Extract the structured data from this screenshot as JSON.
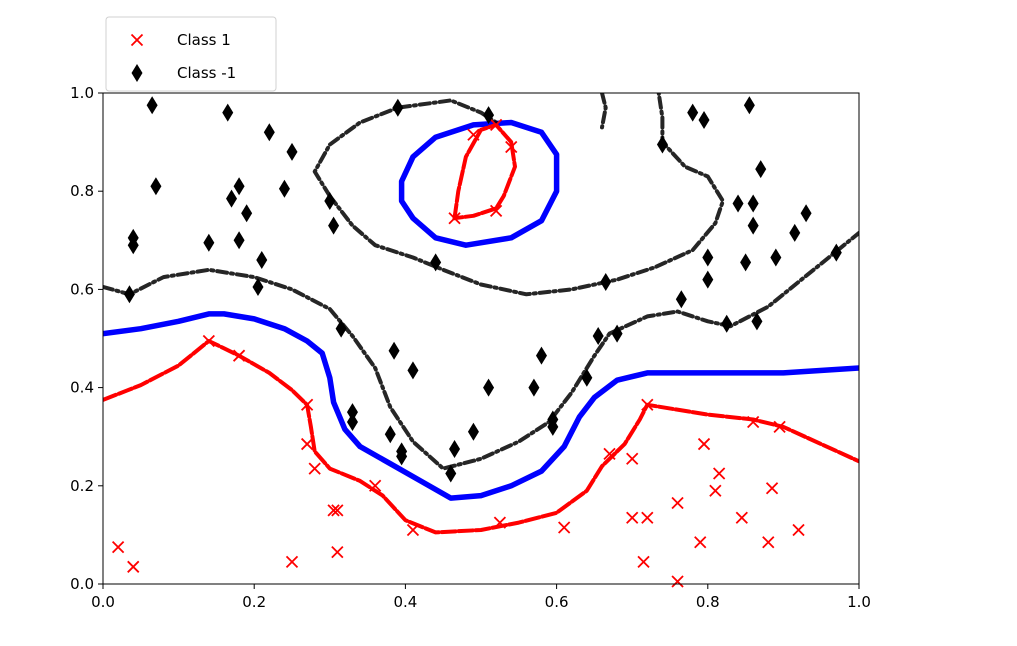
{
  "chart_data": {
    "type": "scatter",
    "title": "",
    "xlabel": "",
    "ylabel": "",
    "xlim": [
      0.0,
      1.0
    ],
    "ylim": [
      0.0,
      1.0
    ],
    "xticks": [
      "0.0",
      "0.2",
      "0.4",
      "0.6",
      "0.8",
      "1.0"
    ],
    "yticks": [
      "0.0",
      "0.2",
      "0.4",
      "0.6",
      "0.8",
      "1.0"
    ],
    "grid": false,
    "legend": {
      "placement": "top-left, above axes",
      "entries": [
        {
          "label": "Class 1",
          "marker": "x",
          "color": "#ff0000"
        },
        {
          "label": "Class -1",
          "marker": "diamond",
          "color": "#000000"
        }
      ]
    },
    "series": [
      {
        "name": "Class 1",
        "marker": "x",
        "color": "#ff0000",
        "points": [
          [
            0.02,
            0.075
          ],
          [
            0.04,
            0.035
          ],
          [
            0.14,
            0.495
          ],
          [
            0.18,
            0.465
          ],
          [
            0.27,
            0.365
          ],
          [
            0.27,
            0.285
          ],
          [
            0.28,
            0.235
          ],
          [
            0.25,
            0.045
          ],
          [
            0.305,
            0.15
          ],
          [
            0.31,
            0.15
          ],
          [
            0.31,
            0.065
          ],
          [
            0.36,
            0.2
          ],
          [
            0.41,
            0.11
          ],
          [
            0.465,
            0.745
          ],
          [
            0.49,
            0.915
          ],
          [
            0.52,
            0.935
          ],
          [
            0.54,
            0.89
          ],
          [
            0.52,
            0.76
          ],
          [
            0.525,
            0.125
          ],
          [
            0.61,
            0.115
          ],
          [
            0.67,
            0.265
          ],
          [
            0.7,
            0.255
          ],
          [
            0.7,
            0.135
          ],
          [
            0.72,
            0.135
          ],
          [
            0.715,
            0.045
          ],
          [
            0.72,
            0.365
          ],
          [
            0.76,
            0.165
          ],
          [
            0.76,
            0.005
          ],
          [
            0.79,
            0.085
          ],
          [
            0.795,
            0.285
          ],
          [
            0.81,
            0.19
          ],
          [
            0.815,
            0.225
          ],
          [
            0.845,
            0.135
          ],
          [
            0.86,
            0.33
          ],
          [
            0.88,
            0.085
          ],
          [
            0.885,
            0.195
          ],
          [
            0.895,
            0.32
          ],
          [
            0.92,
            0.11
          ]
        ]
      },
      {
        "name": "Class -1",
        "marker": "diamond",
        "color": "#000000",
        "points": [
          [
            0.04,
            0.705
          ],
          [
            0.04,
            0.69
          ],
          [
            0.035,
            0.59
          ],
          [
            0.065,
            0.975
          ],
          [
            0.07,
            0.81
          ],
          [
            0.14,
            0.695
          ],
          [
            0.165,
            0.96
          ],
          [
            0.17,
            0.785
          ],
          [
            0.18,
            0.81
          ],
          [
            0.19,
            0.755
          ],
          [
            0.18,
            0.7
          ],
          [
            0.21,
            0.66
          ],
          [
            0.205,
            0.605
          ],
          [
            0.22,
            0.92
          ],
          [
            0.24,
            0.805
          ],
          [
            0.25,
            0.88
          ],
          [
            0.3,
            0.78
          ],
          [
            0.305,
            0.73
          ],
          [
            0.315,
            0.52
          ],
          [
            0.33,
            0.35
          ],
          [
            0.33,
            0.33
          ],
          [
            0.38,
            0.305
          ],
          [
            0.385,
            0.475
          ],
          [
            0.395,
            0.27
          ],
          [
            0.395,
            0.26
          ],
          [
            0.41,
            0.435
          ],
          [
            0.39,
            0.97
          ],
          [
            0.44,
            0.655
          ],
          [
            0.46,
            0.225
          ],
          [
            0.465,
            0.275
          ],
          [
            0.49,
            0.31
          ],
          [
            0.51,
            0.4
          ],
          [
            0.51,
            0.955
          ],
          [
            0.57,
            0.4
          ],
          [
            0.58,
            0.465
          ],
          [
            0.595,
            0.335
          ],
          [
            0.595,
            0.32
          ],
          [
            0.64,
            0.42
          ],
          [
            0.655,
            0.505
          ],
          [
            0.665,
            0.615
          ],
          [
            0.68,
            0.51
          ],
          [
            0.74,
            0.895
          ],
          [
            0.765,
            0.58
          ],
          [
            0.78,
            0.96
          ],
          [
            0.795,
            0.945
          ],
          [
            0.8,
            0.665
          ],
          [
            0.8,
            0.62
          ],
          [
            0.825,
            0.53
          ],
          [
            0.84,
            0.775
          ],
          [
            0.85,
            0.655
          ],
          [
            0.855,
            0.975
          ],
          [
            0.86,
            0.775
          ],
          [
            0.86,
            0.73
          ],
          [
            0.865,
            0.535
          ],
          [
            0.87,
            0.845
          ],
          [
            0.89,
            0.665
          ],
          [
            0.915,
            0.715
          ],
          [
            0.93,
            0.755
          ],
          [
            0.97,
            0.675
          ]
        ]
      }
    ],
    "contours": [
      {
        "level": "decision boundary",
        "color": "#0000ff",
        "paths": [
          [
            [
              0.0,
              0.51
            ],
            [
              0.05,
              0.52
            ],
            [
              0.1,
              0.535
            ],
            [
              0.14,
              0.55
            ],
            [
              0.16,
              0.55
            ],
            [
              0.2,
              0.54
            ],
            [
              0.24,
              0.52
            ],
            [
              0.27,
              0.495
            ],
            [
              0.29,
              0.47
            ],
            [
              0.3,
              0.42
            ],
            [
              0.305,
              0.37
            ],
            [
              0.32,
              0.315
            ],
            [
              0.34,
              0.28
            ],
            [
              0.38,
              0.245
            ],
            [
              0.42,
              0.21
            ],
            [
              0.46,
              0.175
            ],
            [
              0.5,
              0.18
            ],
            [
              0.54,
              0.2
            ],
            [
              0.58,
              0.23
            ],
            [
              0.61,
              0.28
            ],
            [
              0.63,
              0.34
            ],
            [
              0.65,
              0.38
            ],
            [
              0.68,
              0.415
            ],
            [
              0.72,
              0.43
            ],
            [
              0.8,
              0.43
            ],
            [
              0.9,
              0.43
            ],
            [
              1.0,
              0.44
            ]
          ],
          [
            [
              0.395,
              0.82
            ],
            [
              0.41,
              0.87
            ],
            [
              0.44,
              0.91
            ],
            [
              0.49,
              0.935
            ],
            [
              0.54,
              0.94
            ],
            [
              0.58,
              0.92
            ],
            [
              0.6,
              0.875
            ],
            [
              0.6,
              0.8
            ],
            [
              0.58,
              0.74
            ],
            [
              0.54,
              0.705
            ],
            [
              0.48,
              0.69
            ],
            [
              0.44,
              0.705
            ],
            [
              0.41,
              0.745
            ],
            [
              0.395,
              0.78
            ],
            [
              0.395,
              0.82
            ]
          ]
        ]
      },
      {
        "level": "class 1 margin",
        "color": "#ff0000",
        "paths": [
          [
            [
              0.0,
              0.375
            ],
            [
              0.05,
              0.405
            ],
            [
              0.1,
              0.445
            ],
            [
              0.14,
              0.495
            ],
            [
              0.16,
              0.48
            ],
            [
              0.18,
              0.465
            ],
            [
              0.22,
              0.43
            ],
            [
              0.25,
              0.395
            ],
            [
              0.27,
              0.365
            ],
            [
              0.275,
              0.32
            ],
            [
              0.28,
              0.27
            ],
            [
              0.3,
              0.235
            ],
            [
              0.34,
              0.21
            ],
            [
              0.37,
              0.18
            ],
            [
              0.4,
              0.13
            ],
            [
              0.44,
              0.105
            ],
            [
              0.5,
              0.11
            ],
            [
              0.55,
              0.125
            ],
            [
              0.6,
              0.145
            ],
            [
              0.64,
              0.19
            ],
            [
              0.66,
              0.24
            ],
            [
              0.69,
              0.285
            ],
            [
              0.71,
              0.335
            ],
            [
              0.72,
              0.365
            ],
            [
              0.8,
              0.345
            ],
            [
              0.86,
              0.335
            ],
            [
              0.9,
              0.32
            ],
            [
              0.95,
              0.285
            ],
            [
              1.0,
              0.25
            ]
          ],
          [
            [
              0.465,
              0.745
            ],
            [
              0.47,
              0.8
            ],
            [
              0.48,
              0.87
            ],
            [
              0.5,
              0.925
            ],
            [
              0.52,
              0.935
            ],
            [
              0.54,
              0.9
            ],
            [
              0.545,
              0.85
            ],
            [
              0.53,
              0.79
            ],
            [
              0.52,
              0.765
            ],
            [
              0.49,
              0.75
            ],
            [
              0.465,
              0.745
            ]
          ]
        ]
      },
      {
        "level": "class -1 margin",
        "color": "#000000",
        "paths": [
          [
            [
              0.0,
              0.605
            ],
            [
              0.035,
              0.59
            ],
            [
              0.08,
              0.625
            ],
            [
              0.14,
              0.64
            ],
            [
              0.2,
              0.625
            ],
            [
              0.25,
              0.6
            ],
            [
              0.3,
              0.56
            ],
            [
              0.33,
              0.505
            ],
            [
              0.36,
              0.44
            ],
            [
              0.38,
              0.36
            ],
            [
              0.41,
              0.29
            ],
            [
              0.45,
              0.235
            ],
            [
              0.5,
              0.255
            ],
            [
              0.55,
              0.29
            ],
            [
              0.59,
              0.33
            ],
            [
              0.62,
              0.39
            ],
            [
              0.65,
              0.465
            ],
            [
              0.67,
              0.51
            ],
            [
              0.72,
              0.545
            ],
            [
              0.76,
              0.555
            ],
            [
              0.8,
              0.535
            ],
            [
              0.83,
              0.525
            ],
            [
              0.88,
              0.565
            ],
            [
              0.92,
              0.615
            ],
            [
              0.96,
              0.665
            ],
            [
              1.0,
              0.715
            ]
          ],
          [
            [
              0.3,
              0.79
            ],
            [
              0.28,
              0.84
            ],
            [
              0.3,
              0.895
            ],
            [
              0.34,
              0.94
            ],
            [
              0.39,
              0.97
            ],
            [
              0.46,
              0.985
            ],
            [
              0.5,
              0.96
            ],
            [
              0.52,
              0.94
            ]
          ],
          [
            [
              0.3,
              0.79
            ],
            [
              0.33,
              0.73
            ],
            [
              0.36,
              0.69
            ],
            [
              0.41,
              0.665
            ],
            [
              0.45,
              0.64
            ],
            [
              0.5,
              0.61
            ],
            [
              0.56,
              0.59
            ],
            [
              0.62,
              0.6
            ],
            [
              0.68,
              0.62
            ],
            [
              0.73,
              0.645
            ],
            [
              0.78,
              0.68
            ],
            [
              0.81,
              0.735
            ],
            [
              0.82,
              0.78
            ],
            [
              0.8,
              0.83
            ],
            [
              0.77,
              0.85
            ],
            [
              0.74,
              0.9
            ],
            [
              0.74,
              0.95
            ],
            [
              0.735,
              1.0
            ]
          ],
          [
            [
              0.66,
              1.0
            ],
            [
              0.665,
              0.97
            ],
            [
              0.66,
              0.93
            ]
          ]
        ]
      }
    ]
  },
  "colors": {
    "class1": "#ff0000",
    "class_neg1": "#000000",
    "boundary": "#0000ff"
  }
}
